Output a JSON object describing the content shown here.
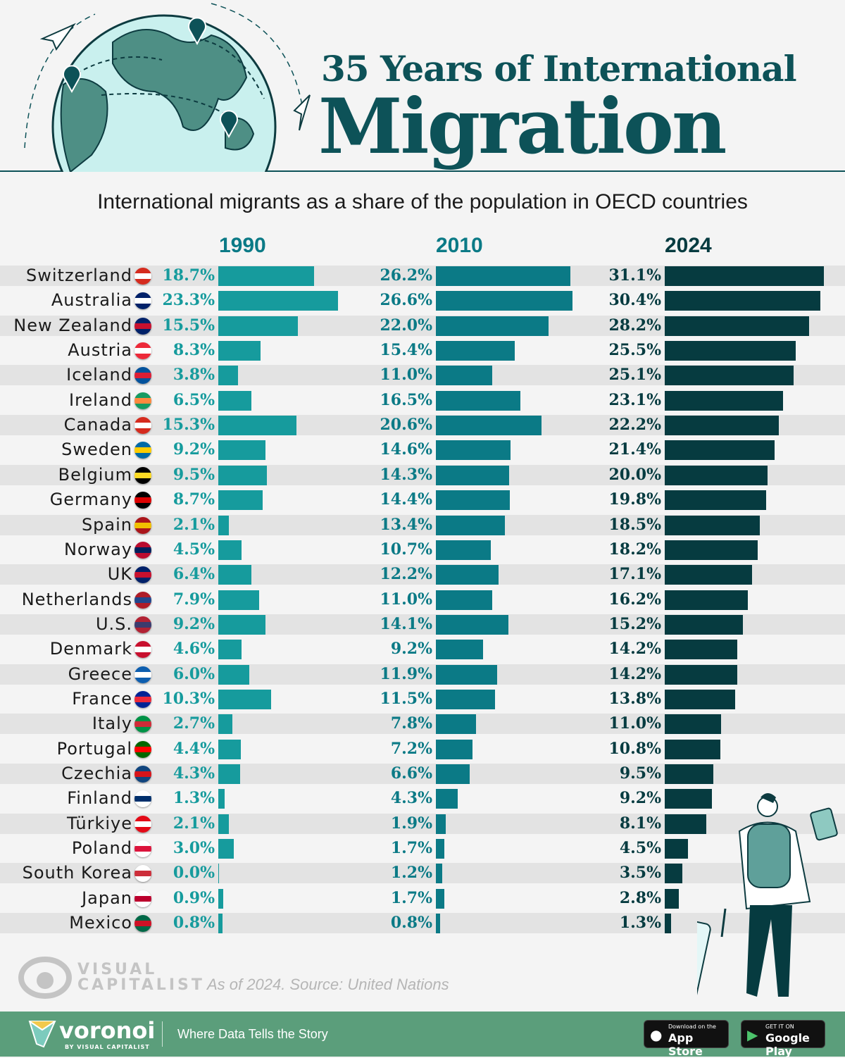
{
  "header": {
    "title_line1": "35 Years of International",
    "title_line2": "Migration"
  },
  "subtitle": "International migrants as a share of the population in OECD countries",
  "colors": {
    "y1990": "#169b9d",
    "y2010": "#0b7a86",
    "y2024": "#063b40",
    "title": "#0d5258",
    "stripe": "#e3e3e3",
    "footer": "#5b9e7b"
  },
  "chart_data": {
    "type": "bar",
    "title": "35 Years of International Migration",
    "subtitle": "International migrants as a share of the population in OECD countries",
    "unit": "%",
    "categories": [
      "Switzerland",
      "Australia",
      "New Zealand",
      "Austria",
      "Iceland",
      "Ireland",
      "Canada",
      "Sweden",
      "Belgium",
      "Germany",
      "Spain",
      "Norway",
      "UK",
      "Netherlands",
      "U.S.",
      "Denmark",
      "Greece",
      "France",
      "Italy",
      "Portugal",
      "Czechia",
      "Finland",
      "Türkiye",
      "Poland",
      "South Korea",
      "Japan",
      "Mexico"
    ],
    "series": [
      {
        "name": "1990",
        "values": [
          18.7,
          23.3,
          15.5,
          8.3,
          3.8,
          6.5,
          15.3,
          9.2,
          9.5,
          8.7,
          2.1,
          4.5,
          6.4,
          7.9,
          9.2,
          4.6,
          6.0,
          10.3,
          2.7,
          4.4,
          4.3,
          1.3,
          2.1,
          3.0,
          0.0,
          0.9,
          0.8
        ]
      },
      {
        "name": "2010",
        "values": [
          26.2,
          26.6,
          22.0,
          15.4,
          11.0,
          16.5,
          20.6,
          14.6,
          14.3,
          14.4,
          13.4,
          10.7,
          12.2,
          11.0,
          14.1,
          9.2,
          11.9,
          11.5,
          7.8,
          7.2,
          6.6,
          4.3,
          1.9,
          1.7,
          1.2,
          1.7,
          0.8
        ]
      },
      {
        "name": "2024",
        "values": [
          31.1,
          30.4,
          28.2,
          25.5,
          25.1,
          23.1,
          22.2,
          21.4,
          20.0,
          19.8,
          18.5,
          18.2,
          17.1,
          16.2,
          15.2,
          14.2,
          14.2,
          13.8,
          11.0,
          10.8,
          9.5,
          9.2,
          8.1,
          4.5,
          3.5,
          2.8,
          1.3
        ]
      }
    ],
    "flags": [
      [
        "#d52b1e",
        "#fff"
      ],
      [
        "#012169",
        "#fff"
      ],
      [
        "#012169",
        "#c8102e"
      ],
      [
        "#ed2939",
        "#fff"
      ],
      [
        "#02529c",
        "#dc1e35"
      ],
      [
        "#169b62",
        "#ff883e"
      ],
      [
        "#d52b1e",
        "#fff"
      ],
      [
        "#006aa7",
        "#fecc00"
      ],
      [
        "#000",
        "#fdda24"
      ],
      [
        "#000",
        "#dd0000"
      ],
      [
        "#aa151b",
        "#f1bf00"
      ],
      [
        "#ba0c2f",
        "#00205b"
      ],
      [
        "#012169",
        "#c8102e"
      ],
      [
        "#ae1c28",
        "#21468b"
      ],
      [
        "#b22234",
        "#3c3b6e"
      ],
      [
        "#c8102e",
        "#fff"
      ],
      [
        "#0d5eaf",
        "#fff"
      ],
      [
        "#002395",
        "#ed2939"
      ],
      [
        "#009246",
        "#ce2b37"
      ],
      [
        "#006600",
        "#ff0000"
      ],
      [
        "#11457e",
        "#d7141a"
      ],
      [
        "#fff",
        "#002f6c"
      ],
      [
        "#e30a17",
        "#fff"
      ],
      [
        "#fff",
        "#dc143c"
      ],
      [
        "#fff",
        "#cd2e3a"
      ],
      [
        "#fff",
        "#bc002d"
      ],
      [
        "#006847",
        "#ce1126"
      ]
    ],
    "legend": "column headers"
  },
  "footer": {
    "source": "As of 2024. Source: United Nations",
    "vc_line1": "VISUAL",
    "vc_line2": "CAPITALIST",
    "brand": "voronoi",
    "brand_sub": "BY VISUAL CAPITALIST",
    "tagline": "Where Data Tells the Story",
    "appstore_small": "Download on the",
    "appstore": "App Store",
    "gplay_small": "GET IT ON",
    "gplay": "Google Play"
  }
}
